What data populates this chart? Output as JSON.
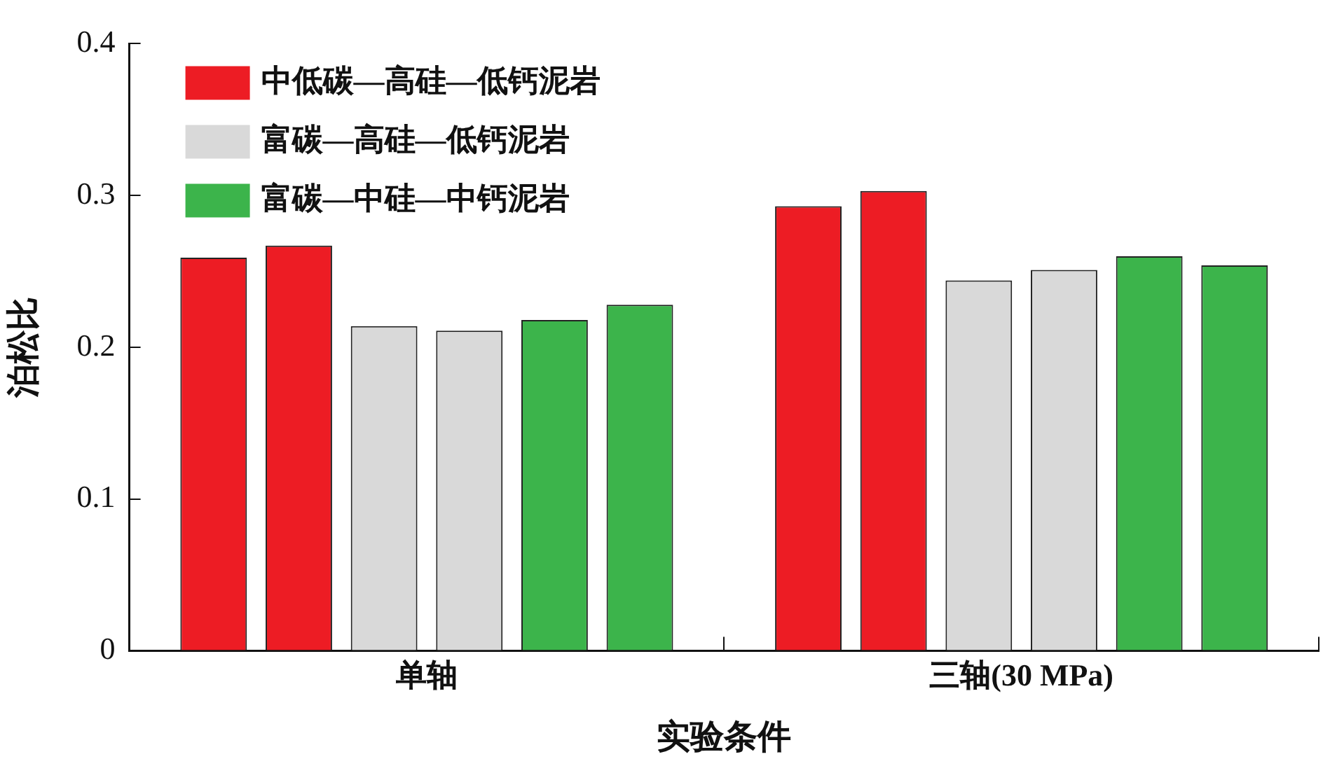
{
  "chart_data": {
    "type": "bar",
    "xlabel": "实验条件",
    "ylabel": "泊松比",
    "categories": [
      "单轴",
      "三轴(30 MPa)"
    ],
    "series": [
      {
        "name": "中低碳—高硅—低钙泥岩",
        "color": "#ed1c24",
        "values": [
          0.259,
          0.293
        ]
      },
      {
        "color": "#ed1c24",
        "values": [
          0.267,
          0.303
        ]
      },
      {
        "name": "富碳—高硅—低钙泥岩",
        "color": "#d9d9d9",
        "values": [
          0.214,
          0.244
        ]
      },
      {
        "color": "#d9d9d9",
        "values": [
          0.211,
          0.251
        ]
      },
      {
        "name": "富碳—中硅—中钙泥岩",
        "color": "#3cb44b",
        "values": [
          0.218,
          0.26
        ]
      },
      {
        "color": "#3cb44b",
        "values": [
          0.228,
          0.254
        ]
      }
    ],
    "ylim": [
      0,
      0.4
    ],
    "yticks": [
      0,
      0.1,
      0.2,
      0.3,
      0.4
    ],
    "grid": false,
    "legend": "top left"
  }
}
